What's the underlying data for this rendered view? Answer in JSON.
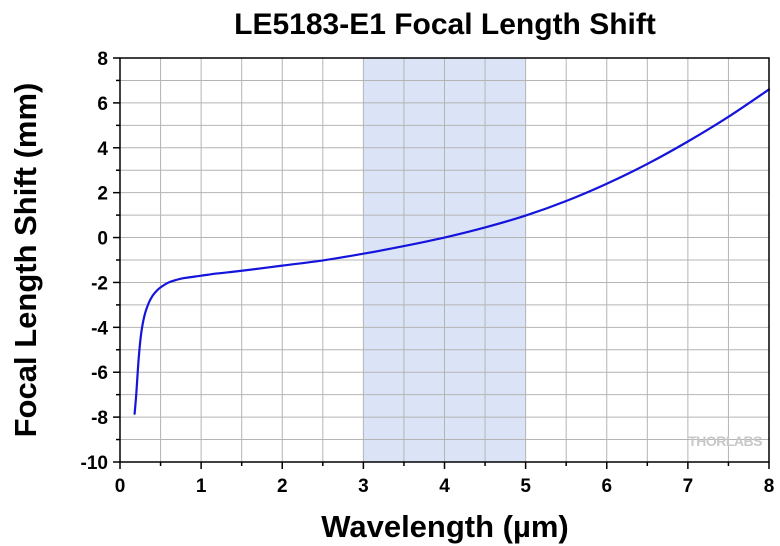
{
  "chart_data": {
    "type": "line",
    "title": "LE5183-E1 Focal Length Shift",
    "xlabel": "Wavelength (µm)",
    "ylabel": "Focal Length Shift (mm)",
    "xlim": [
      0,
      8
    ],
    "ylim": [
      -10,
      8
    ],
    "x_ticks": [
      "0",
      "1",
      "2",
      "3",
      "4",
      "5",
      "6",
      "7",
      "8"
    ],
    "y_ticks": [
      "-10",
      "-8",
      "-6",
      "-4",
      "-2",
      "0",
      "2",
      "4",
      "6",
      "8"
    ],
    "grid": true,
    "shaded_region": {
      "x_start": 3,
      "x_end": 5,
      "color": "#dbe4f6"
    },
    "watermark": "THORLABS",
    "series": [
      {
        "color": "#1414dc",
        "x": [
          0.18,
          0.2,
          0.23,
          0.26,
          0.3,
          0.35,
          0.4,
          0.45,
          0.5,
          0.6,
          0.7,
          0.8,
          1.0,
          1.2,
          1.5,
          2.0,
          2.5,
          3.0,
          3.5,
          4.0,
          4.5,
          5.0,
          5.5,
          6.0,
          6.5,
          7.0,
          7.5,
          8.0
        ],
        "y": [
          -7.85,
          -7.0,
          -5.4,
          -4.3,
          -3.5,
          -2.95,
          -2.6,
          -2.38,
          -2.22,
          -2.0,
          -1.88,
          -1.8,
          -1.7,
          -1.6,
          -1.48,
          -1.25,
          -1.02,
          -0.72,
          -0.38,
          0.0,
          0.45,
          0.98,
          1.63,
          2.4,
          3.28,
          4.28,
          5.38,
          6.6
        ]
      }
    ]
  }
}
